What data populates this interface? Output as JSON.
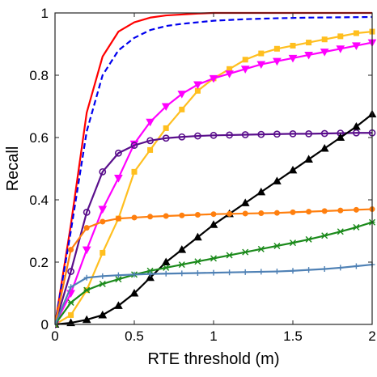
{
  "chart_data": {
    "type": "line",
    "title": "",
    "xlabel": "RTE threshold (m)",
    "ylabel": "Recall",
    "xlim": [
      0,
      2
    ],
    "ylim": [
      0,
      1
    ],
    "xticks": [
      0,
      0.5,
      1,
      1.5,
      2
    ],
    "yticks": [
      0,
      0.2,
      0.4,
      0.6,
      0.8,
      1
    ],
    "xtick_labels": [
      "0",
      "0.5",
      "1",
      "1.5",
      "2"
    ],
    "ytick_labels": [
      "0",
      "0.2",
      "0.4",
      "0.6",
      "0.8",
      "1"
    ],
    "grid": false,
    "legend": "none",
    "series": [
      {
        "color": "#ff0000",
        "dash": "solid",
        "marker": "none",
        "x": [
          0,
          0.1,
          0.2,
          0.3,
          0.4,
          0.5,
          0.6,
          0.7,
          0.8,
          0.9,
          1.0,
          1.2,
          1.4,
          1.6,
          1.8,
          2.0
        ],
        "y": [
          0,
          0.32,
          0.68,
          0.86,
          0.94,
          0.97,
          0.985,
          0.992,
          0.995,
          0.998,
          1.0,
          1.0,
          1.0,
          1.0,
          1.0,
          1.0
        ]
      },
      {
        "color": "#0000ee",
        "dash": "dashed",
        "marker": "none",
        "x": [
          0,
          0.1,
          0.2,
          0.3,
          0.4,
          0.5,
          0.6,
          0.7,
          0.8,
          0.9,
          1.0,
          1.2,
          1.4,
          1.6,
          1.8,
          2.0
        ],
        "y": [
          0,
          0.3,
          0.62,
          0.8,
          0.88,
          0.92,
          0.945,
          0.958,
          0.965,
          0.97,
          0.975,
          0.98,
          0.983,
          0.985,
          0.986,
          0.987
        ]
      },
      {
        "color": "#ffbf1f",
        "dash": "solid",
        "marker": "square",
        "x": [
          0,
          0.1,
          0.2,
          0.3,
          0.4,
          0.5,
          0.6,
          0.7,
          0.8,
          0.9,
          1.0,
          1.1,
          1.2,
          1.3,
          1.4,
          1.5,
          1.6,
          1.7,
          1.8,
          1.9,
          2.0
        ],
        "y": [
          0,
          0.03,
          0.11,
          0.23,
          0.34,
          0.49,
          0.56,
          0.63,
          0.69,
          0.75,
          0.79,
          0.82,
          0.85,
          0.87,
          0.885,
          0.895,
          0.905,
          0.915,
          0.925,
          0.935,
          0.94
        ]
      },
      {
        "color": "#ff00ff",
        "dash": "solid",
        "marker": "triangle-down",
        "x": [
          0,
          0.1,
          0.2,
          0.3,
          0.4,
          0.5,
          0.6,
          0.7,
          0.8,
          0.9,
          1.0,
          1.1,
          1.2,
          1.3,
          1.4,
          1.5,
          1.6,
          1.7,
          1.8,
          1.9,
          2.0
        ],
        "y": [
          0,
          0.1,
          0.24,
          0.37,
          0.47,
          0.58,
          0.65,
          0.7,
          0.74,
          0.77,
          0.79,
          0.805,
          0.82,
          0.835,
          0.845,
          0.855,
          0.865,
          0.875,
          0.885,
          0.895,
          0.905
        ]
      },
      {
        "color": "#5a0f8c",
        "dash": "solid",
        "marker": "circle",
        "x": [
          0,
          0.1,
          0.2,
          0.3,
          0.4,
          0.5,
          0.6,
          0.7,
          0.8,
          0.9,
          1.0,
          1.1,
          1.2,
          1.3,
          1.4,
          1.5,
          1.6,
          1.7,
          1.8,
          1.9,
          2.0
        ],
        "y": [
          0,
          0.17,
          0.36,
          0.49,
          0.55,
          0.575,
          0.59,
          0.598,
          0.602,
          0.605,
          0.607,
          0.608,
          0.609,
          0.61,
          0.611,
          0.612,
          0.612,
          0.613,
          0.614,
          0.615,
          0.615
        ]
      },
      {
        "color": "#000000",
        "dash": "solid",
        "marker": "triangle-up",
        "x": [
          0,
          0.1,
          0.2,
          0.3,
          0.4,
          0.5,
          0.6,
          0.7,
          0.8,
          0.9,
          1.0,
          1.1,
          1.2,
          1.3,
          1.4,
          1.5,
          1.6,
          1.7,
          1.8,
          1.9,
          2.0
        ],
        "y": [
          0,
          0.005,
          0.015,
          0.03,
          0.06,
          0.1,
          0.15,
          0.2,
          0.24,
          0.28,
          0.32,
          0.355,
          0.39,
          0.425,
          0.46,
          0.495,
          0.53,
          0.565,
          0.6,
          0.635,
          0.675
        ]
      },
      {
        "color": "#ff7f0e",
        "dash": "solid",
        "marker": "circle-filled",
        "x": [
          0,
          0.1,
          0.2,
          0.3,
          0.4,
          0.5,
          0.6,
          0.7,
          0.8,
          0.9,
          1.0,
          1.1,
          1.2,
          1.3,
          1.4,
          1.5,
          1.6,
          1.7,
          1.8,
          1.9,
          2.0
        ],
        "y": [
          0,
          0.24,
          0.31,
          0.33,
          0.34,
          0.343,
          0.346,
          0.348,
          0.35,
          0.352,
          0.354,
          0.355,
          0.356,
          0.357,
          0.358,
          0.36,
          0.362,
          0.364,
          0.366,
          0.368,
          0.37
        ]
      },
      {
        "color": "#1b8a1b",
        "dash": "solid",
        "marker": "asterisk",
        "x": [
          0,
          0.1,
          0.2,
          0.3,
          0.4,
          0.5,
          0.6,
          0.7,
          0.8,
          0.9,
          1.0,
          1.1,
          1.2,
          1.3,
          1.4,
          1.5,
          1.6,
          1.7,
          1.8,
          1.9,
          2.0
        ],
        "y": [
          0,
          0.07,
          0.11,
          0.13,
          0.145,
          0.16,
          0.172,
          0.182,
          0.192,
          0.202,
          0.212,
          0.222,
          0.232,
          0.242,
          0.252,
          0.262,
          0.273,
          0.285,
          0.298,
          0.312,
          0.328
        ]
      },
      {
        "color": "#4f81b5",
        "dash": "solid",
        "marker": "plus",
        "x": [
          0,
          0.1,
          0.2,
          0.3,
          0.4,
          0.5,
          0.6,
          0.7,
          0.8,
          0.9,
          1.0,
          1.1,
          1.2,
          1.3,
          1.4,
          1.5,
          1.6,
          1.7,
          1.8,
          1.9,
          2.0
        ],
        "y": [
          0,
          0.12,
          0.15,
          0.155,
          0.158,
          0.16,
          0.162,
          0.163,
          0.164,
          0.165,
          0.166,
          0.167,
          0.168,
          0.169,
          0.17,
          0.172,
          0.175,
          0.178,
          0.182,
          0.187,
          0.192
        ]
      }
    ]
  }
}
